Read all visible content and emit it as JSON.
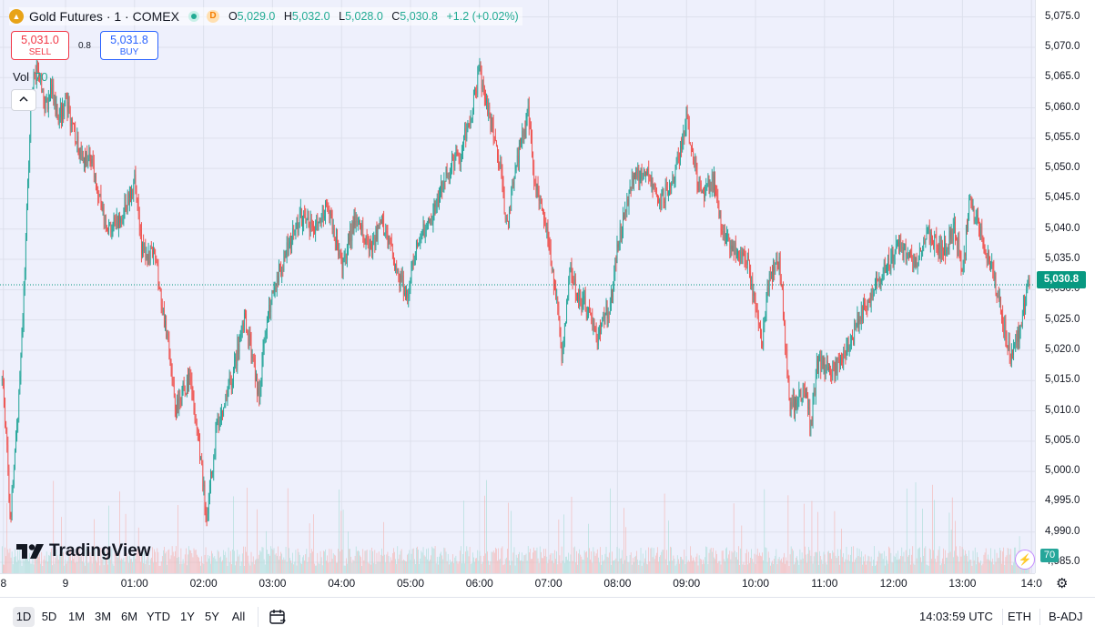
{
  "header": {
    "title": "Gold Futures · 1 · COMEX",
    "badge": "D",
    "o_label": "O",
    "o_value": "5,029.0",
    "h_label": "H",
    "h_value": "5,032.0",
    "l_label": "L",
    "l_value": "5,028.0",
    "c_label": "C",
    "c_value": "5,030.8",
    "change": "+1.2 (+0.02%)"
  },
  "trade": {
    "sell_price": "5,031.0",
    "sell_label": "SELL",
    "spread": "0.8",
    "buy_price": "5,031.8",
    "buy_label": "BUY"
  },
  "volume": {
    "label": "Vol",
    "value": "70"
  },
  "watermark": "TradingView",
  "bottom_bar": {
    "ranges": [
      "1D",
      "5D",
      "1M",
      "3M",
      "6M",
      "YTD",
      "1Y",
      "5Y",
      "All"
    ],
    "active_range": "1D",
    "clock": "14:03:59 UTC",
    "session": "ETH",
    "adjust": "B-ADJ"
  },
  "colors": {
    "up": "#26a69a",
    "down": "#ef5350",
    "background": "#eef0fc",
    "last_price": "#089981"
  },
  "icons": [
    "gold-coin-icon",
    "market-open-icon",
    "collapse-chevron-icon",
    "tradingview-logo-icon",
    "date-range-icon",
    "flash-icon",
    "settings-gear-icon"
  ],
  "chart_data": {
    "type": "candlestick",
    "interval": "1",
    "symbol": "Gold Futures · 1 · COMEX",
    "price_ticks": [
      "5,075.0",
      "5,070.0",
      "5,065.0",
      "5,060.0",
      "5,055.0",
      "5,050.0",
      "5,045.0",
      "5,040.0",
      "5,035.0",
      "5,030.0",
      "5,025.0",
      "5,020.0",
      "5,015.0",
      "5,010.0",
      "5,005.0",
      "5,000.0",
      "4,995.0",
      "4,990.0",
      "4,985.0"
    ],
    "price_values": [
      5075,
      5070,
      5065,
      5060,
      5055,
      5050,
      5045,
      5040,
      5035,
      5030,
      5025,
      5020,
      5015,
      5010,
      5005,
      5000,
      4995,
      4990,
      4985
    ],
    "time_ticks": [
      "8",
      "9",
      "01:00",
      "02:00",
      "03:00",
      "04:00",
      "05:00",
      "06:00",
      "07:00",
      "08:00",
      "09:00",
      "10:00",
      "11:00",
      "12:00",
      "13:00",
      "14:0"
    ],
    "time_values": [
      -0.9,
      0,
      1,
      2,
      3,
      4,
      5,
      6,
      7,
      8,
      9,
      10,
      11,
      12,
      13,
      14
    ],
    "x_range": [
      -0.95,
      14.05
    ],
    "ylim": [
      4983.2,
      5077.8
    ],
    "last_price": "5,030.8",
    "last_volume": "70",
    "path_points": [
      [
        -0.9,
        5015
      ],
      [
        -0.8,
        4992
      ],
      [
        -0.7,
        5008
      ],
      [
        -0.6,
        5030
      ],
      [
        -0.5,
        5062
      ],
      [
        -0.4,
        5068
      ],
      [
        -0.3,
        5060
      ],
      [
        -0.2,
        5063
      ],
      [
        -0.1,
        5058
      ],
      [
        0,
        5061
      ],
      [
        0.2,
        5053
      ],
      [
        0.4,
        5050
      ],
      [
        0.6,
        5040
      ],
      [
        0.8,
        5042
      ],
      [
        1.0,
        5048
      ],
      [
        1.1,
        5037
      ],
      [
        1.3,
        5035
      ],
      [
        1.5,
        5020
      ],
      [
        1.6,
        5010
      ],
      [
        1.7,
        5013
      ],
      [
        1.8,
        5016
      ],
      [
        1.95,
        5002
      ],
      [
        2.05,
        4993
      ],
      [
        2.2,
        5008
      ],
      [
        2.4,
        5015
      ],
      [
        2.6,
        5025
      ],
      [
        2.8,
        5013
      ],
      [
        2.9,
        5023
      ],
      [
        3.0,
        5030
      ],
      [
        3.2,
        5036
      ],
      [
        3.4,
        5042
      ],
      [
        3.6,
        5040
      ],
      [
        3.8,
        5044
      ],
      [
        4.0,
        5034
      ],
      [
        4.2,
        5042
      ],
      [
        4.4,
        5037
      ],
      [
        4.6,
        5041
      ],
      [
        4.8,
        5033
      ],
      [
        4.95,
        5029
      ],
      [
        5.1,
        5038
      ],
      [
        5.3,
        5041
      ],
      [
        5.5,
        5049
      ],
      [
        5.7,
        5052
      ],
      [
        5.9,
        5060
      ],
      [
        6.0,
        5066
      ],
      [
        6.1,
        5061
      ],
      [
        6.3,
        5050
      ],
      [
        6.4,
        5040
      ],
      [
        6.5,
        5049
      ],
      [
        6.7,
        5060
      ],
      [
        6.8,
        5048
      ],
      [
        7.0,
        5038
      ],
      [
        7.1,
        5030
      ],
      [
        7.2,
        5018
      ],
      [
        7.3,
        5033
      ],
      [
        7.5,
        5028
      ],
      [
        7.7,
        5022
      ],
      [
        7.9,
        5028
      ],
      [
        8.0,
        5037
      ],
      [
        8.2,
        5048
      ],
      [
        8.4,
        5050
      ],
      [
        8.6,
        5044
      ],
      [
        8.8,
        5048
      ],
      [
        9.0,
        5058
      ],
      [
        9.1,
        5052
      ],
      [
        9.2,
        5046
      ],
      [
        9.4,
        5048
      ],
      [
        9.5,
        5040
      ],
      [
        9.7,
        5037
      ],
      [
        9.9,
        5034
      ],
      [
        10.0,
        5028
      ],
      [
        10.1,
        5021
      ],
      [
        10.2,
        5032
      ],
      [
        10.35,
        5035
      ],
      [
        10.5,
        5010
      ],
      [
        10.7,
        5014
      ],
      [
        10.8,
        5008
      ],
      [
        10.9,
        5018
      ],
      [
        11.1,
        5017
      ],
      [
        11.3,
        5019
      ],
      [
        11.5,
        5025
      ],
      [
        11.7,
        5030
      ],
      [
        11.9,
        5034
      ],
      [
        12.1,
        5037
      ],
      [
        12.3,
        5034
      ],
      [
        12.5,
        5039
      ],
      [
        12.7,
        5036
      ],
      [
        12.9,
        5040
      ],
      [
        13.0,
        5032
      ],
      [
        13.1,
        5045
      ],
      [
        13.3,
        5038
      ],
      [
        13.5,
        5030
      ],
      [
        13.6,
        5024
      ],
      [
        13.7,
        5019
      ],
      [
        13.85,
        5024
      ],
      [
        13.95,
        5030.8
      ]
    ]
  }
}
